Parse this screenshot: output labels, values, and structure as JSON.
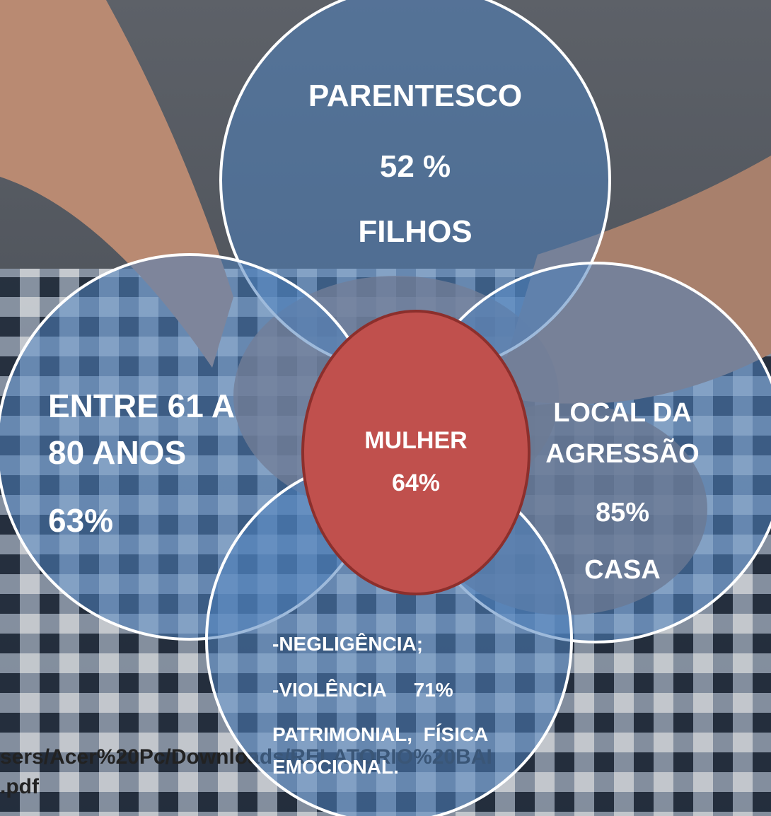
{
  "nodes": [
    {
      "lines": [
        "PARENTESCO",
        "52 %",
        "FILHOS"
      ]
    },
    {
      "lines": [
        "ENTRE 61 A",
        "80 ANOS",
        "63%"
      ]
    },
    {
      "lines": [
        "LOCAL DA",
        "AGRESSÃO",
        "85%",
        "CASA"
      ]
    },
    {
      "lines": [
        "-NEGLIGÊNCIA;",
        "-VIOLÊNCIA     71%",
        "PATRIMONIAL,  FÍSICA",
        "EMOCIONAL."
      ]
    },
    {
      "lines": [
        "MULHER",
        "64%"
      ]
    }
  ],
  "source": [
    "sers/Acer%20Pc/Downloads/RELATORIO%20BAI",
    ".pdf"
  ]
}
